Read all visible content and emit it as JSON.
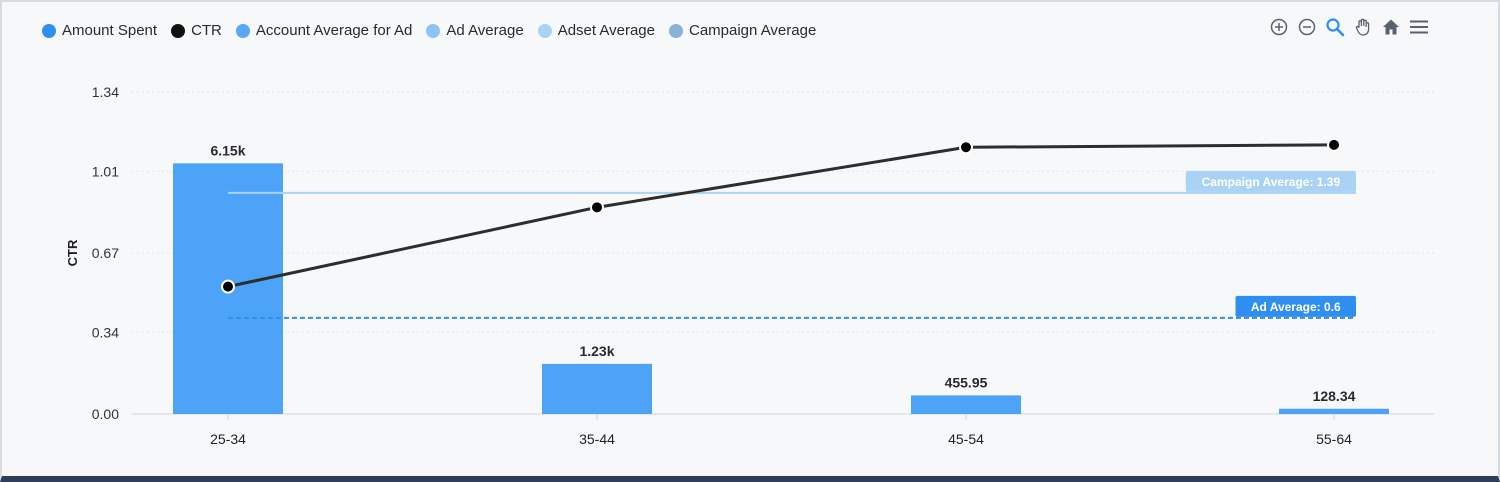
{
  "legend": [
    {
      "label": "Amount Spent",
      "color": "#2f8ff0"
    },
    {
      "label": "CTR",
      "color": "#111111"
    },
    {
      "label": "Account Average for Ad",
      "color": "#57a9f5"
    },
    {
      "label": "Ad Average",
      "color": "#8cc4f7"
    },
    {
      "label": "Adset Average",
      "color": "#a9d2f5"
    },
    {
      "label": "Campaign Average",
      "color": "#8ab1d8"
    }
  ],
  "toolbar": [
    "zoom-in-icon",
    "zoom-out-icon",
    "zoom-select-icon",
    "pan-icon",
    "home-icon",
    "menu-icon"
  ],
  "colors": {
    "bar": "#4da3f7",
    "line": "#2d2d2d",
    "grid": "#e2e5ea",
    "campaign_badge": "#a9d2f5",
    "ad_badge": "#2f8ff0"
  },
  "chart_data": {
    "type": "bar+line",
    "categories": [
      "25-34",
      "35-44",
      "45-54",
      "55-64"
    ],
    "ylabel": "CTR",
    "yticks": [
      "0.00",
      "0.34",
      "0.67",
      "1.01",
      "1.34"
    ],
    "ylim": [
      0,
      1.34
    ],
    "series": [
      {
        "name": "Amount Spent",
        "type": "bar",
        "values": [
          6150,
          1230,
          455.95,
          128.34
        ],
        "labels": [
          "6.15k",
          "1.23k",
          "455.95",
          "128.34"
        ],
        "max": 7900
      },
      {
        "name": "CTR",
        "type": "line",
        "values": [
          0.53,
          0.86,
          1.11,
          1.12
        ]
      }
    ],
    "reference_lines": [
      {
        "name": "Campaign Average",
        "label": "Campaign Average: 1.39",
        "y": 0.92,
        "color": "#a9d2f5"
      },
      {
        "name": "Ad Average",
        "label": "Ad Average: 0.6",
        "y": 0.4,
        "color": "#2f8ff0"
      }
    ],
    "grid": true,
    "legend_position": "top-left"
  }
}
